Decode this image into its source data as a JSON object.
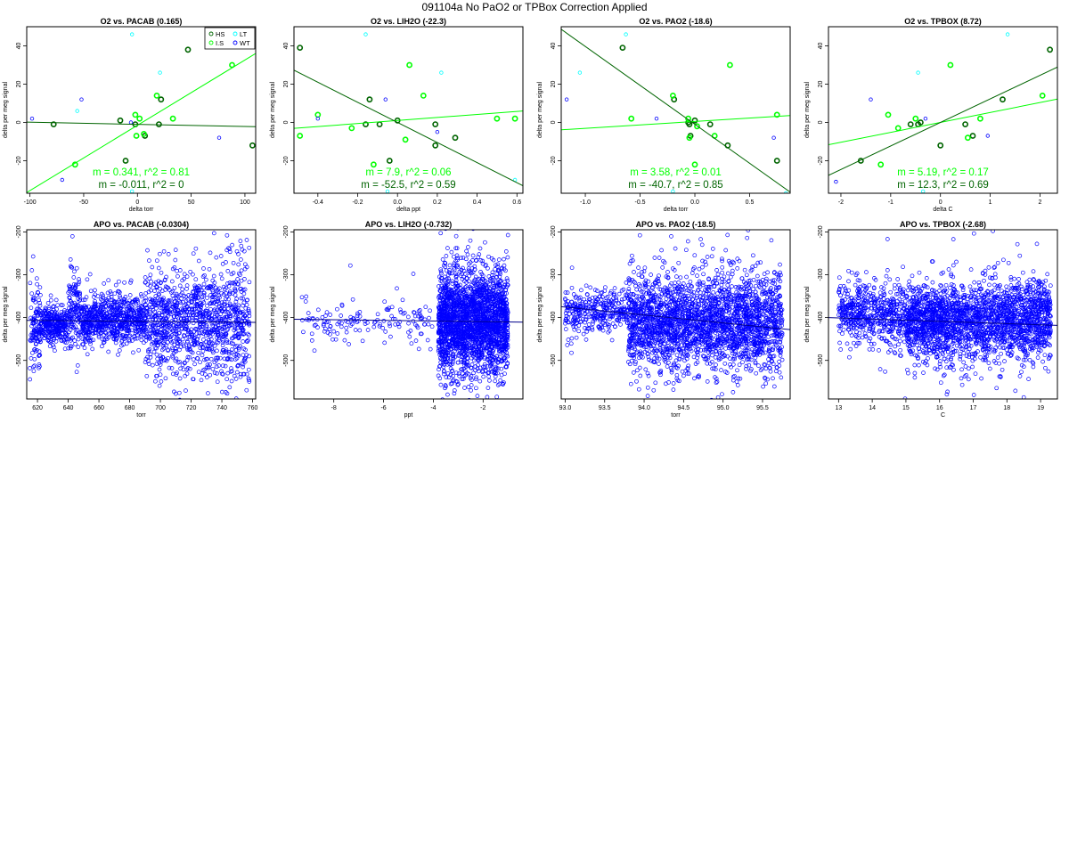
{
  "page_title": "091104a   No PaO2 or TPBox Correction Applied",
  "chart_data": [
    {
      "type": "scatter",
      "title": "O2 vs. PACAB (0.165)",
      "xlabel": "delta torr",
      "ylabel": "delta per meg signal",
      "xlim": [
        -103,
        110
      ],
      "ylim": [
        -37,
        50
      ],
      "xticks": [
        -100,
        -50,
        0,
        50,
        100
      ],
      "yticks": [
        -20,
        0,
        20,
        40
      ],
      "legend": {
        "placement": "top-right",
        "entries": [
          {
            "label": "HS",
            "color": "#006400"
          },
          {
            "label": "LT",
            "color": "#00ffff"
          },
          {
            "label": "I.S",
            "color": "#00ff00"
          },
          {
            "label": "WT",
            "color": "#0000ff"
          }
        ]
      },
      "series": [
        {
          "name": "HS",
          "color": "#006400",
          "points": [
            [
              -78,
              -1
            ],
            [
              -16,
              1
            ],
            [
              -11,
              -20
            ],
            [
              -2,
              -1
            ],
            [
              20,
              -1
            ],
            [
              22,
              12
            ],
            [
              47,
              38
            ],
            [
              107,
              -12
            ],
            [
              7,
              -7
            ]
          ]
        },
        {
          "name": "I.S",
          "color": "#00ff00",
          "points": [
            [
              -58,
              -22
            ],
            [
              -2,
              4
            ],
            [
              2,
              2
            ],
            [
              6,
              -6
            ],
            [
              18,
              14
            ],
            [
              33,
              2
            ],
            [
              88,
              30
            ],
            [
              -1,
              -7
            ]
          ]
        },
        {
          "name": "LT",
          "color": "#00ffff",
          "points": [
            [
              -5,
              46
            ],
            [
              21,
              26
            ],
            [
              -5,
              -36
            ],
            [
              -56,
              6
            ]
          ]
        },
        {
          "name": "WT",
          "color": "#0000ff",
          "points": [
            [
              -98,
              2
            ],
            [
              -52,
              12
            ],
            [
              -70,
              -30
            ],
            [
              76,
              -8
            ],
            [
              -6,
              0
            ]
          ]
        }
      ],
      "fit_lines": [
        {
          "color": "#00ff00",
          "slope": 0.341,
          "intercept": -1.5
        },
        {
          "color": "#006400",
          "slope": -0.011,
          "intercept": -1
        }
      ],
      "annotations": [
        {
          "text": "m = 0.341, r^2 = 0.81",
          "color": "#00ff00"
        },
        {
          "text": "m = -0.011, r^2 = 0",
          "color": "#006400"
        }
      ]
    },
    {
      "type": "scatter",
      "title": "O2 vs. LIH2O (-22.3)",
      "xlabel": "delta ppt",
      "ylabel": "delta per meg signal",
      "xlim": [
        -0.52,
        0.63
      ],
      "ylim": [
        -37,
        50
      ],
      "xticks": [
        -0.4,
        -0.2,
        0.0,
        0.2,
        0.4,
        0.6
      ],
      "yticks": [
        -20,
        0,
        20,
        40
      ],
      "series": [
        {
          "name": "HS",
          "color": "#006400",
          "points": [
            [
              -0.49,
              39
            ],
            [
              -0.14,
              12
            ],
            [
              -0.09,
              -1
            ],
            [
              -0.04,
              -20
            ],
            [
              0.0,
              1
            ],
            [
              0.19,
              -1
            ],
            [
              0.19,
              -12
            ],
            [
              0.29,
              -8
            ],
            [
              -0.16,
              -1
            ]
          ]
        },
        {
          "name": "I.S",
          "color": "#00ff00",
          "points": [
            [
              -0.49,
              -7
            ],
            [
              -0.4,
              4
            ],
            [
              -0.23,
              -3
            ],
            [
              -0.12,
              -22
            ],
            [
              0.06,
              30
            ],
            [
              0.04,
              -9
            ],
            [
              0.13,
              14
            ],
            [
              0.5,
              2
            ],
            [
              0.59,
              2
            ]
          ]
        },
        {
          "name": "LT",
          "color": "#00ffff",
          "points": [
            [
              -0.16,
              46
            ],
            [
              0.22,
              26
            ],
            [
              -0.05,
              -36
            ],
            [
              0.59,
              -30
            ]
          ]
        },
        {
          "name": "WT",
          "color": "#0000ff",
          "points": [
            [
              -0.4,
              2
            ],
            [
              -0.06,
              12
            ],
            [
              0.2,
              -5
            ]
          ]
        }
      ],
      "fit_lines": [
        {
          "color": "#00ff00",
          "slope": 7.9,
          "intercept": 1
        },
        {
          "color": "#006400",
          "slope": -52.5,
          "intercept": 0
        }
      ],
      "annotations": [
        {
          "text": "m = 7.9, r^2 = 0.06",
          "color": "#00ff00"
        },
        {
          "text": "m = -52.5, r^2 = 0.59",
          "color": "#006400"
        }
      ]
    },
    {
      "type": "scatter",
      "title": "O2 vs. PAO2 (-18.6)",
      "xlabel": "delta torr",
      "ylabel": "delta per meg signal",
      "xlim": [
        -1.22,
        0.87
      ],
      "ylim": [
        -37,
        50
      ],
      "xticks": [
        -1.0,
        -0.5,
        0.0,
        0.5
      ],
      "yticks": [
        -20,
        0,
        20,
        40
      ],
      "series": [
        {
          "name": "HS",
          "color": "#006400",
          "points": [
            [
              -0.66,
              39
            ],
            [
              -0.19,
              12
            ],
            [
              -0.05,
              -1
            ],
            [
              -0.04,
              -7
            ],
            [
              0.0,
              1
            ],
            [
              0.14,
              -1
            ],
            [
              0.3,
              -12
            ],
            [
              0.75,
              -20
            ],
            [
              -0.06,
              0
            ]
          ]
        },
        {
          "name": "I.S",
          "color": "#00ff00",
          "points": [
            [
              -0.58,
              2
            ],
            [
              -0.2,
              14
            ],
            [
              -0.06,
              2
            ],
            [
              -0.05,
              -8
            ],
            [
              0.02,
              -2
            ],
            [
              0.0,
              -22
            ],
            [
              0.18,
              -7
            ],
            [
              0.32,
              30
            ],
            [
              0.75,
              4
            ]
          ]
        },
        {
          "name": "LT",
          "color": "#00ffff",
          "points": [
            [
              -1.05,
              26
            ],
            [
              -0.63,
              46
            ],
            [
              0.83,
              -37
            ],
            [
              -0.2,
              -36
            ]
          ]
        },
        {
          "name": "WT",
          "color": "#0000ff",
          "points": [
            [
              -1.17,
              12
            ],
            [
              -0.35,
              2
            ],
            [
              0.72,
              -8
            ]
          ]
        }
      ],
      "fit_lines": [
        {
          "color": "#00ff00",
          "slope": 3.58,
          "intercept": 0.5
        },
        {
          "color": "#006400",
          "slope": -40.7,
          "intercept": -1
        }
      ],
      "annotations": [
        {
          "text": "m = 3.58, r^2 = 0.01",
          "color": "#00ff00"
        },
        {
          "text": "m = -40.7, r^2 = 0.85",
          "color": "#006400"
        }
      ]
    },
    {
      "type": "scatter",
      "title": "O2 vs. TPBOX (8.72)",
      "xlabel": "delta C",
      "ylabel": "delta per meg signal",
      "xlim": [
        -2.25,
        2.35
      ],
      "ylim": [
        -37,
        50
      ],
      "xticks": [
        -2,
        -1,
        0,
        1,
        2
      ],
      "yticks": [
        -20,
        0,
        20,
        40
      ],
      "series": [
        {
          "name": "HS",
          "color": "#006400",
          "points": [
            [
              -1.6,
              -20
            ],
            [
              -0.6,
              -1
            ],
            [
              -0.45,
              -1
            ],
            [
              0.0,
              -12
            ],
            [
              0.5,
              -1
            ],
            [
              0.65,
              -7
            ],
            [
              1.25,
              12
            ],
            [
              2.2,
              38
            ],
            [
              -0.4,
              0
            ]
          ]
        },
        {
          "name": "I.S",
          "color": "#00ff00",
          "points": [
            [
              -1.2,
              -22
            ],
            [
              -1.05,
              4
            ],
            [
              -0.85,
              -3
            ],
            [
              -0.5,
              2
            ],
            [
              0.2,
              30
            ],
            [
              0.55,
              -8
            ],
            [
              0.8,
              2
            ],
            [
              2.05,
              14
            ]
          ]
        },
        {
          "name": "LT",
          "color": "#00ffff",
          "points": [
            [
              -0.45,
              26
            ],
            [
              1.35,
              46
            ],
            [
              -0.35,
              -36
            ]
          ]
        },
        {
          "name": "WT",
          "color": "#0000ff",
          "points": [
            [
              -2.1,
              -31
            ],
            [
              -1.4,
              12
            ],
            [
              -0.3,
              2
            ],
            [
              0.95,
              -7
            ]
          ]
        }
      ],
      "fit_lines": [
        {
          "color": "#00ff00",
          "slope": 5.19,
          "intercept": 0
        },
        {
          "color": "#006400",
          "slope": 12.3,
          "intercept": 0
        }
      ],
      "annotations": [
        {
          "text": "m = 5.19, r^2 = 0.17",
          "color": "#00ff00"
        },
        {
          "text": "m = 12.3, r^2 = 0.69",
          "color": "#006400"
        }
      ]
    },
    {
      "type": "scatter",
      "title": "APO vs. PACAB (-0.0304)",
      "xlabel": "torr",
      "ylabel": "delta per meg signal",
      "xlim": [
        613,
        762
      ],
      "ylim": [
        -590,
        -195
      ],
      "xticks": [
        620,
        640,
        660,
        680,
        700,
        720,
        740,
        760
      ],
      "yticks": [
        -500,
        -400,
        -300,
        -200
      ],
      "point_color": "#0000ff",
      "point_count": 2400,
      "clusters": [
        {
          "x": [
            615,
            622
          ],
          "y_center": -420,
          "y_spread": 45
        },
        {
          "x": [
            622,
            640
          ],
          "y_center": -415,
          "y_spread": 20
        },
        {
          "x": [
            640,
            648
          ],
          "y_center": -385,
          "y_spread": 50
        },
        {
          "x": [
            648,
            690
          ],
          "y_center": -405,
          "y_spread": 28
        },
        {
          "x": [
            690,
            740
          ],
          "y_center": -410,
          "y_spread": 60
        },
        {
          "x": [
            740,
            758
          ],
          "y_center": -415,
          "y_spread": 85
        }
      ],
      "fit_lines": [
        {
          "color": "#00008b",
          "slope": -0.0304,
          "intercept": -388
        }
      ]
    },
    {
      "type": "scatter",
      "title": "APO vs. LIH2O (-0.732)",
      "xlabel": "ppt",
      "ylabel": "delta per meg signal",
      "xlim": [
        -9.6,
        -0.4
      ],
      "ylim": [
        -590,
        -195
      ],
      "xticks": [
        -8,
        -6,
        -4,
        -2
      ],
      "yticks": [
        -500,
        -400,
        -300,
        -200
      ],
      "point_color": "#0000ff",
      "point_count": 2400,
      "clusters": [
        {
          "x": [
            -9.3,
            -4.0
          ],
          "y_center": -410,
          "y_spread": 25,
          "weight": 0.06
        },
        {
          "x": [
            -3.8,
            -1.0
          ],
          "y_center": -410,
          "y_spread": 60,
          "weight": 0.94
        }
      ],
      "fit_lines": [
        {
          "color": "#00008b",
          "slope": -0.732,
          "intercept": -411
        }
      ]
    },
    {
      "type": "scatter",
      "title": "APO vs. PAO2 (-18.5)",
      "xlabel": "torr",
      "ylabel": "delta per meg signal",
      "xlim": [
        92.95,
        95.85
      ],
      "ylim": [
        -590,
        -195
      ],
      "xticks": [
        93.0,
        93.5,
        94.0,
        94.5,
        95.0,
        95.5
      ],
      "yticks": [
        -500,
        -400,
        -300,
        -200
      ],
      "point_color": "#0000ff",
      "point_count": 2800,
      "clusters": [
        {
          "x": [
            93.0,
            93.8
          ],
          "y_center": -385,
          "y_spread": 25,
          "weight": 0.12
        },
        {
          "x": [
            93.8,
            95.75
          ],
          "y_center": -410,
          "y_spread": 55,
          "weight": 0.88
        }
      ],
      "fit_lines": [
        {
          "color": "#00008b",
          "slope": -18.5,
          "intercept": 1345
        }
      ]
    },
    {
      "type": "scatter",
      "title": "APO vs. TPBOX (-2.68)",
      "xlabel": "C",
      "ylabel": "delta per meg signal",
      "xlim": [
        12.7,
        19.5
      ],
      "ylim": [
        -590,
        -195
      ],
      "xticks": [
        13,
        14,
        15,
        16,
        17,
        18,
        19
      ],
      "yticks": [
        -500,
        -400,
        -300,
        -200
      ],
      "point_color": "#0000ff",
      "point_count": 2800,
      "clusters": [
        {
          "x": [
            13.0,
            15.0
          ],
          "y_center": -390,
          "y_spread": 35,
          "weight": 0.2
        },
        {
          "x": [
            15.0,
            19.3
          ],
          "y_center": -410,
          "y_spread": 45,
          "weight": 0.8
        }
      ],
      "fit_lines": [
        {
          "color": "#00008b",
          "slope": -2.68,
          "intercept": -366
        }
      ]
    }
  ]
}
